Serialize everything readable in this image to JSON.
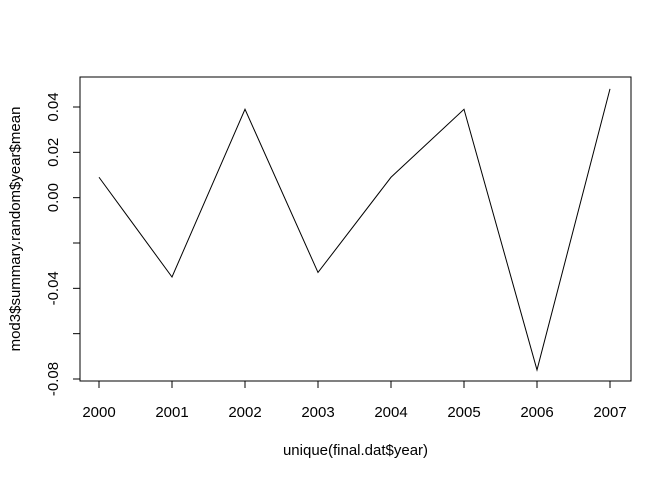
{
  "chart_data": {
    "type": "line",
    "title": "",
    "xlabel": "unique(final.dat$year)",
    "ylabel": "mod3$summary.random$year$mean",
    "x": [
      2000,
      2001,
      2002,
      2003,
      2004,
      2005,
      2006,
      2007
    ],
    "series": [
      {
        "values": [
          0.009,
          -0.035,
          0.039,
          -0.033,
          0.009,
          0.039,
          -0.076,
          0.048
        ]
      }
    ],
    "xlim": [
      2000,
      2007
    ],
    "ylim": [
      -0.08,
      0.04
    ],
    "x_ticks": [
      "2000",
      "2001",
      "2002",
      "2003",
      "2004",
      "2005",
      "2006",
      "2007"
    ],
    "y_ticks": [
      "-0.08",
      "-0.04",
      "0.00",
      "0.02",
      "0.04"
    ],
    "y_tick_values": [
      -0.08,
      -0.06,
      -0.04,
      -0.02,
      0.0,
      0.02,
      0.04
    ],
    "y_tick_label_for": [
      "-0.08",
      "",
      "-0.04",
      "",
      "0.00",
      "0.02",
      "0.04"
    ],
    "grid": false,
    "legend": "none",
    "line_color": "#000000"
  }
}
